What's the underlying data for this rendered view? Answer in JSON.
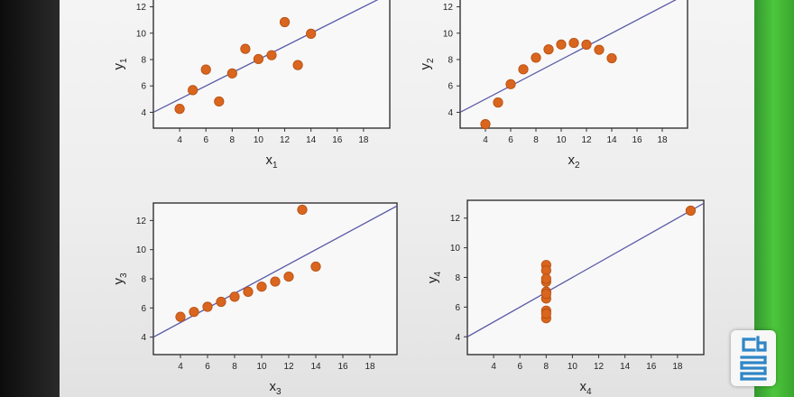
{
  "chart_data": [
    {
      "type": "scatter",
      "xlabel": "x",
      "xlabel_sub": "1",
      "ylabel": "y",
      "ylabel_sub": "1",
      "xticks": [
        4,
        6,
        8,
        10,
        12,
        14,
        16,
        18
      ],
      "yticks": [
        4,
        6,
        8,
        10,
        12
      ],
      "xlim": [
        2,
        20
      ],
      "ylim": [
        2.8,
        13.2
      ],
      "fit_line": {
        "slope": 0.5,
        "intercept": 3
      },
      "x": [
        10,
        8,
        13,
        9,
        11,
        14,
        6,
        4,
        12,
        7,
        5
      ],
      "y": [
        8.04,
        6.95,
        7.58,
        8.81,
        8.33,
        9.96,
        7.24,
        4.26,
        10.84,
        4.82,
        5.68
      ]
    },
    {
      "type": "scatter",
      "xlabel": "x",
      "xlabel_sub": "2",
      "ylabel": "y",
      "ylabel_sub": "2",
      "xticks": [
        4,
        6,
        8,
        10,
        12,
        14,
        16,
        18
      ],
      "yticks": [
        4,
        6,
        8,
        10,
        12
      ],
      "xlim": [
        2,
        20
      ],
      "ylim": [
        2.8,
        13.2
      ],
      "fit_line": {
        "slope": 0.5,
        "intercept": 3
      },
      "x": [
        10,
        8,
        13,
        9,
        11,
        14,
        6,
        4,
        12,
        7,
        5
      ],
      "y": [
        9.14,
        8.14,
        8.74,
        8.77,
        9.26,
        8.1,
        6.13,
        3.1,
        9.13,
        7.26,
        4.74
      ]
    },
    {
      "type": "scatter",
      "xlabel": "x",
      "xlabel_sub": "3",
      "ylabel": "y",
      "ylabel_sub": "3",
      "xticks": [
        4,
        6,
        8,
        10,
        12,
        14,
        16,
        18
      ],
      "yticks": [
        4,
        6,
        8,
        10,
        12
      ],
      "xlim": [
        2,
        20
      ],
      "ylim": [
        2.8,
        13.2
      ],
      "fit_line": {
        "slope": 0.5,
        "intercept": 3
      },
      "x": [
        10,
        8,
        13,
        9,
        11,
        14,
        6,
        4,
        12,
        7,
        5
      ],
      "y": [
        7.46,
        6.77,
        12.74,
        7.11,
        7.81,
        8.84,
        6.08,
        5.39,
        8.15,
        6.42,
        5.73
      ]
    },
    {
      "type": "scatter",
      "xlabel": "x",
      "xlabel_sub": "4",
      "ylabel": "y",
      "ylabel_sub": "4",
      "xticks": [
        4,
        6,
        8,
        10,
        12,
        14,
        16,
        18
      ],
      "yticks": [
        4,
        6,
        8,
        10,
        12
      ],
      "xlim": [
        2,
        20
      ],
      "ylim": [
        2.8,
        13.2
      ],
      "fit_line": {
        "slope": 0.5,
        "intercept": 3
      },
      "x": [
        8,
        8,
        8,
        8,
        8,
        8,
        8,
        19,
        8,
        8,
        8
      ],
      "y": [
        6.58,
        5.76,
        7.71,
        8.84,
        8.47,
        7.04,
        5.25,
        12.5,
        5.56,
        7.91,
        6.89
      ]
    }
  ],
  "style": {
    "point_color": "#d9651e",
    "point_edge": "#b54f12",
    "line_color": "#5a5aa8",
    "axis_color": "#333333",
    "plot_bg": "#f8f8f8",
    "logo_color": "#2f86c6"
  }
}
